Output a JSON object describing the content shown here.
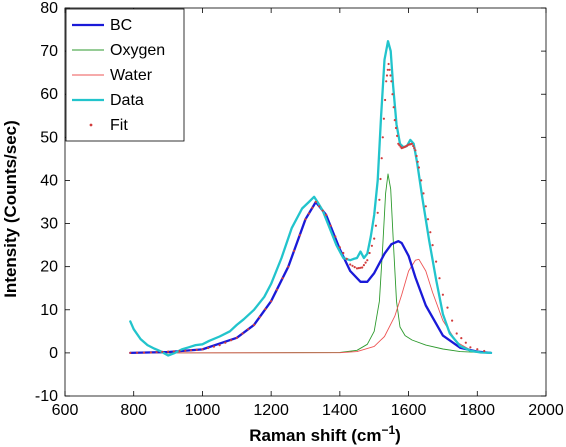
{
  "chart_data": {
    "type": "line",
    "title": "",
    "xlabel": "Raman shift (cm",
    "xlabel_sup": "−1",
    "xlabel_close": ")",
    "ylabel": "Intensity (Counts/sec)",
    "xlim": [
      600,
      2000
    ],
    "ylim": [
      -10,
      80
    ],
    "xticks": [
      "600",
      "800",
      "1000",
      "1200",
      "1400",
      "1600",
      "1800",
      "2000"
    ],
    "yticks": [
      "-10",
      "0",
      "10",
      "20",
      "30",
      "40",
      "50",
      "60",
      "70",
      "80"
    ],
    "grid": false,
    "legend_position": "top-left",
    "series": [
      {
        "name": "BC",
        "color": "#1a1ad8",
        "style": "thick-line",
        "x": [
          790,
          900,
          1000,
          1100,
          1150,
          1200,
          1250,
          1300,
          1330,
          1360,
          1400,
          1430,
          1460,
          1480,
          1500,
          1530,
          1550,
          1570,
          1580,
          1600,
          1620,
          1650,
          1700,
          1750,
          1800,
          1840
        ],
        "y": [
          0,
          0.2,
          0.8,
          3.5,
          6.5,
          12,
          20,
          31,
          35,
          32,
          24,
          19,
          16.5,
          16.5,
          18.5,
          23,
          25.2,
          25.9,
          25.5,
          22.5,
          17.5,
          11,
          4,
          1.2,
          0.3,
          0
        ]
      },
      {
        "name": "Oxygen",
        "color": "#2e9a2e",
        "style": "thin-line",
        "x": [
          790,
          1400,
          1450,
          1480,
          1500,
          1515,
          1525,
          1533,
          1540,
          1548,
          1556,
          1565,
          1575,
          1590,
          1610,
          1650,
          1700,
          1750,
          1840
        ],
        "y": [
          0,
          0.1,
          0.6,
          2,
          5,
          12,
          25,
          37,
          41.5,
          38,
          25,
          12,
          6,
          4,
          3,
          1.8,
          0.9,
          0.3,
          0
        ]
      },
      {
        "name": "Water",
        "color": "#ee5555",
        "style": "thin-line",
        "x": [
          790,
          1400,
          1450,
          1500,
          1530,
          1560,
          1580,
          1600,
          1620,
          1630,
          1650,
          1670,
          1700,
          1740,
          1780,
          1840
        ],
        "y": [
          0,
          0.05,
          0.3,
          1.5,
          3.8,
          8.5,
          13.5,
          19,
          21.5,
          21.7,
          19,
          14,
          7.5,
          2.5,
          0.7,
          0
        ]
      },
      {
        "name": "Data",
        "color": "#22c4cc",
        "style": "thick-line",
        "x": [
          790,
          800,
          820,
          840,
          860,
          880,
          900,
          920,
          940,
          960,
          980,
          1000,
          1020,
          1050,
          1080,
          1100,
          1120,
          1150,
          1180,
          1200,
          1230,
          1260,
          1290,
          1310,
          1325,
          1335,
          1350,
          1370,
          1390,
          1410,
          1430,
          1440,
          1450,
          1460,
          1470,
          1480,
          1490,
          1500,
          1510,
          1520,
          1530,
          1540,
          1548,
          1555,
          1565,
          1575,
          1585,
          1595,
          1605,
          1615,
          1625,
          1640,
          1660,
          1680,
          1700,
          1720,
          1750,
          1780,
          1810,
          1840
        ],
        "y": [
          7.3,
          5.5,
          3.2,
          1.8,
          1,
          0.3,
          -0.6,
          0,
          0.8,
          1.3,
          1.8,
          2,
          2.8,
          3.8,
          5,
          6.5,
          7.8,
          10,
          13,
          16,
          22,
          29,
          33.5,
          35,
          36.2,
          35,
          33,
          29,
          25,
          22,
          21.5,
          21.8,
          22,
          23.5,
          22,
          23,
          27,
          32,
          40,
          55,
          68,
          72.3,
          70,
          62,
          53,
          48.5,
          47.7,
          48,
          49.4,
          48.5,
          44,
          36,
          26,
          17,
          9,
          4.5,
          1.6,
          0.5,
          0.1,
          0
        ]
      },
      {
        "name": "Fit",
        "color": "#d23c3c",
        "style": "dots",
        "x": [
          790,
          850,
          900,
          950,
          1000,
          1050,
          1100,
          1150,
          1200,
          1250,
          1300,
          1330,
          1360,
          1400,
          1430,
          1450,
          1465,
          1480,
          1500,
          1515,
          1525,
          1535,
          1542,
          1550,
          1560,
          1570,
          1580,
          1590,
          1600,
          1610,
          1620,
          1630,
          1650,
          1670,
          1700,
          1740,
          1780,
          1840
        ],
        "y": [
          0,
          0.1,
          0.3,
          0.5,
          0.8,
          1.8,
          3.5,
          6.5,
          12,
          20,
          31,
          35,
          32,
          24.5,
          20.5,
          19.6,
          19.8,
          21.5,
          26.5,
          35.5,
          50,
          63,
          67,
          63,
          54,
          48.5,
          47.5,
          47.8,
          48.3,
          48.5,
          47,
          43,
          34,
          25,
          13.5,
          4.5,
          1.3,
          0
        ]
      }
    ]
  }
}
